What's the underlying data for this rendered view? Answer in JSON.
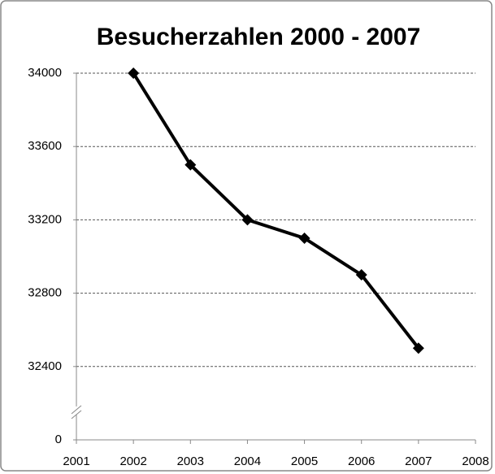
{
  "chart_data": {
    "type": "line",
    "title": "Besucherzahlen 2000 - 2007",
    "x": [
      2002,
      2003,
      2004,
      2005,
      2006,
      2007
    ],
    "series": [
      {
        "color": "#000000",
        "values": [
          34000,
          33500,
          33200,
          33100,
          32900,
          32500
        ]
      }
    ],
    "xlim": [
      2001,
      2008
    ],
    "xticks": [
      2001,
      2002,
      2003,
      2004,
      2005,
      2006,
      2007,
      2008
    ],
    "ylim": [
      0,
      34000
    ],
    "yticks": [
      0,
      32400,
      32800,
      33200,
      33600,
      34000
    ],
    "y_axis_break": true,
    "grid": true
  }
}
